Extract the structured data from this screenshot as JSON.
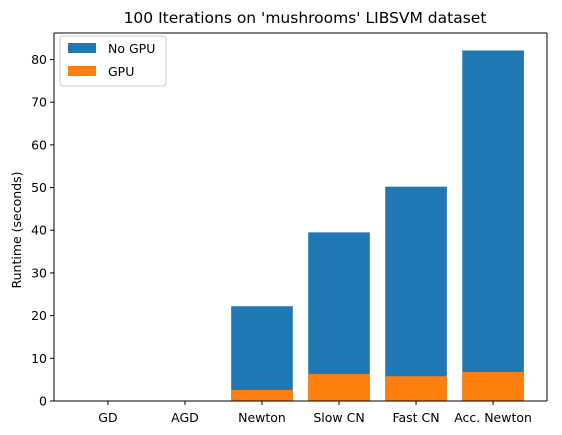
{
  "chart_data": {
    "type": "bar",
    "title": "100 Iterations on 'mushrooms' LIBSVM dataset",
    "xlabel": "",
    "ylabel": "Runtime (seconds)",
    "categories": [
      "GD",
      "AGD",
      "Newton",
      "Slow CN",
      "Fast CN",
      "Acc. Newton"
    ],
    "series": [
      {
        "name": "No GPU",
        "color": "#1f77b4",
        "values": [
          0,
          0,
          22.2,
          39.5,
          50.2,
          82.1
        ]
      },
      {
        "name": "GPU",
        "color": "#ff7f0e",
        "values": [
          0,
          0,
          2.6,
          6.3,
          5.8,
          6.8
        ]
      }
    ],
    "overlay": true,
    "ylim": [
      0,
      86.2
    ],
    "yticks": [
      0,
      10,
      20,
      30,
      40,
      50,
      60,
      70,
      80
    ],
    "grid": false,
    "legend_position": "top-left"
  }
}
